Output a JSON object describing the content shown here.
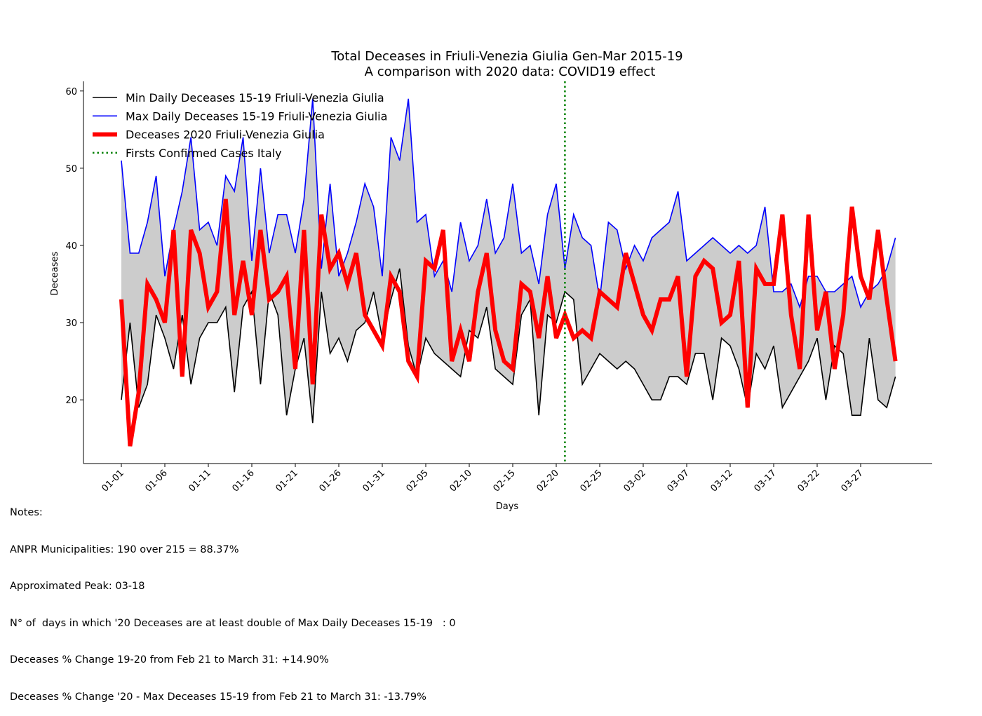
{
  "chart_data": {
    "type": "line",
    "title": "Total Deceases in Friuli-Venezia Giulia Gen-Mar 2015-19",
    "subtitle": "A comparison with 2020 data: COVID19 effect",
    "xlabel": "Days",
    "ylabel": "Deceases",
    "ylim": [
      11.75,
      61.25
    ],
    "yticks": [
      20,
      30,
      40,
      50,
      60
    ],
    "xticks": [
      "01-01",
      "01-06",
      "01-11",
      "01-16",
      "01-21",
      "01-26",
      "01-31",
      "02-05",
      "02-10",
      "02-15",
      "02-20",
      "02-25",
      "03-02",
      "03-07",
      "03-12",
      "03-17",
      "03-22",
      "03-27"
    ],
    "xtick_step": 5,
    "n_days": 91,
    "grid": false,
    "legend_position": "upper left",
    "vline": {
      "x_index": 51,
      "label": "Firsts Confirmed Cases Italy",
      "color": "#008000",
      "style": "dotted"
    },
    "band_color": "#cccccc",
    "series": [
      {
        "name": "Min Daily Deceases 15-19 Friuli-Venezia Giulia",
        "color": "#000000",
        "width": "thin",
        "values": [
          20,
          30,
          19,
          22,
          31,
          28,
          24,
          31,
          22,
          28,
          30,
          30,
          32,
          21,
          32,
          34,
          22,
          34,
          31,
          18,
          24,
          28,
          17,
          34,
          26,
          28,
          25,
          29,
          30,
          34,
          28,
          33,
          37,
          27,
          23,
          28,
          26,
          25,
          24,
          23,
          29,
          28,
          32,
          24,
          23,
          22,
          31,
          33,
          18,
          31,
          30,
          34,
          33,
          22,
          24,
          26,
          25,
          24,
          25,
          24,
          22,
          20,
          20,
          23,
          23,
          22,
          26,
          26,
          20,
          28,
          27,
          24,
          19,
          26,
          24,
          27,
          19,
          21,
          23,
          25,
          28,
          20,
          27,
          26,
          18,
          18,
          28,
          20,
          19,
          23,
          null
        ]
      },
      {
        "name": "Max Daily Deceases 15-19 Friuli-Venezia Giulia",
        "color": "#0000ff",
        "width": "thin",
        "values": [
          51,
          39,
          39,
          43,
          49,
          36,
          42,
          47,
          54,
          42,
          43,
          40,
          49,
          47,
          54,
          38,
          50,
          39,
          44,
          44,
          39,
          46,
          59,
          37,
          48,
          36,
          39,
          43,
          48,
          45,
          36,
          54,
          51,
          59,
          43,
          44,
          36,
          38,
          34,
          43,
          38,
          40,
          46,
          39,
          41,
          48,
          39,
          40,
          35,
          44,
          48,
          37,
          44,
          41,
          40,
          33,
          43,
          42,
          37,
          40,
          38,
          41,
          42,
          43,
          47,
          38,
          39,
          40,
          41,
          40,
          39,
          40,
          39,
          40,
          45,
          34,
          34,
          35,
          32,
          36,
          36,
          34,
          34,
          35,
          36,
          32,
          34,
          35,
          37,
          41,
          null
        ]
      },
      {
        "name": "Deceases 2020 Friuli-Venezia Giulia",
        "color": "#ff0000",
        "width": "thick",
        "values": [
          33,
          14,
          21,
          35,
          33,
          30,
          42,
          23,
          42,
          39,
          32,
          34,
          46,
          31,
          38,
          31,
          42,
          33,
          34,
          36,
          24,
          42,
          22,
          44,
          37,
          39,
          35,
          39,
          31,
          29,
          27,
          36,
          34,
          25,
          23,
          38,
          37,
          42,
          25,
          29,
          25,
          34,
          39,
          29,
          25,
          24,
          35,
          34,
          28,
          36,
          28,
          31,
          28,
          29,
          28,
          34,
          33,
          32,
          39,
          35,
          31,
          29,
          33,
          33,
          36,
          23,
          36,
          38,
          37,
          30,
          31,
          38,
          19,
          37,
          35,
          35,
          44,
          31,
          24,
          44,
          29,
          34,
          24,
          31,
          45,
          36,
          33,
          42,
          33,
          25,
          null
        ]
      },
      {
        "name": "Firsts Confirmed Cases Italy",
        "color": "#008000",
        "width": "dotted",
        "values": []
      }
    ]
  },
  "notes": {
    "heading": "Notes:",
    "lines": [
      "ANPR Municipalities: 190 over 215 = 88.37%",
      "Approximated Peak: 03-18",
      "N° of  days in which '20 Deceases are at least double of Max Daily Deceases 15-19   : 0",
      "Deceases % Change 19-20 from Feb 21 to March 31: +14.90%",
      "Deceases % Change '20 - Max Deceases 15-19 from Feb 21 to March 31: -13.79%"
    ]
  }
}
